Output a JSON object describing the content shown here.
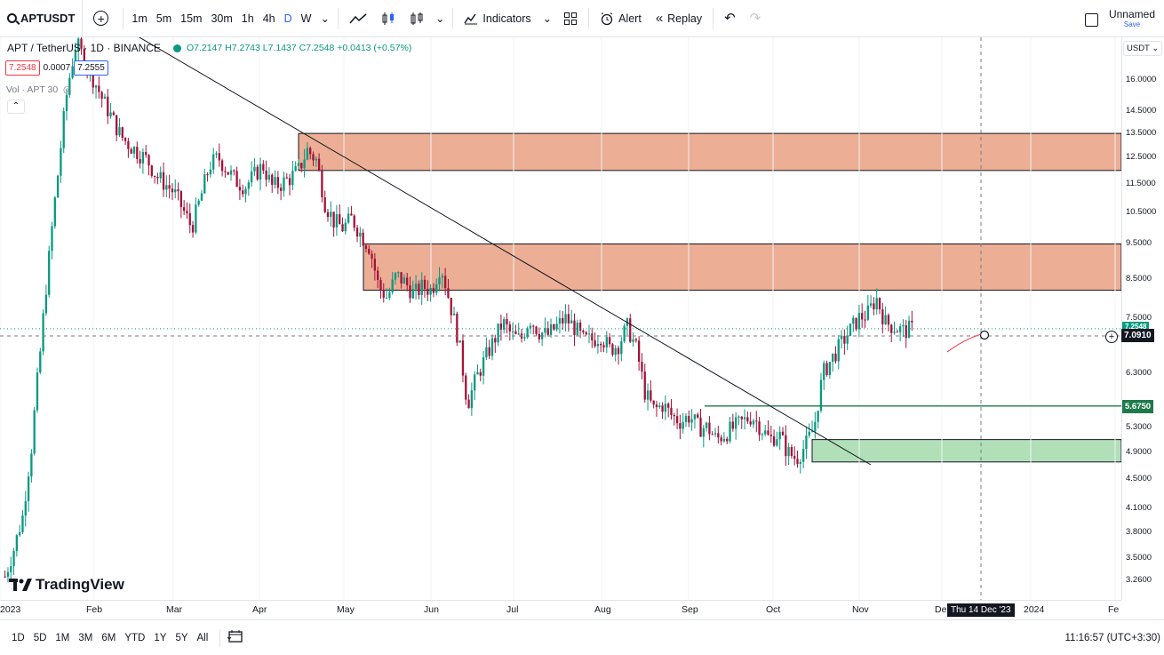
{
  "toolbar": {
    "symbol": "APTUSDT",
    "timeframes": [
      "1m",
      "5m",
      "15m",
      "30m",
      "1h",
      "4h",
      "D",
      "W"
    ],
    "active_timeframe": "D",
    "indicators_label": "Indicators",
    "alert_label": "Alert",
    "replay_label": "Replay",
    "layout_name": "Unnamed",
    "save_label": "Save"
  },
  "legend": {
    "title": "APT / TetherUS · 1D · BINANCE",
    "ohlc": "O7.2147 H7.2743 L7.1437 C7.2548 +0.0413 (+0.57%)",
    "bid": "7.2548",
    "spread": "0.0007",
    "ask": "7.2555",
    "volume": "Vol · APT 30"
  },
  "price_axis": {
    "currency": "USDT",
    "ticks": [
      "16.0000",
      "14.5000",
      "13.5000",
      "12.5000",
      "11.5000",
      "10.5000",
      "9.5000",
      "8.5000",
      "7.5000",
      "6.3000",
      "5.3000",
      "4.9000",
      "4.5000",
      "4.1000",
      "3.8000",
      "3.5000",
      "3.2600"
    ],
    "level_tag": "5.6750",
    "last_price": "7.2548",
    "crosshair_price": "7.0910"
  },
  "time_axis": {
    "ticks": [
      "2023",
      "Feb",
      "Mar",
      "Apr",
      "May",
      "Jun",
      "Jul",
      "Aug",
      "Sep",
      "Oct",
      "Nov",
      "De",
      "2024",
      "Fe"
    ],
    "crosshair_date": "Thu 14 Dec '23"
  },
  "bottom": {
    "ranges": [
      "1D",
      "5D",
      "1M",
      "3M",
      "6M",
      "YTD",
      "1Y",
      "5Y",
      "All"
    ],
    "clock": "11:16:57 (UTC+3:30)"
  },
  "branding": {
    "logo_text": "TradingView"
  },
  "colors": {
    "up": "#089981",
    "down": "#a3123a",
    "supply_zone": "#eaa58a",
    "demand_zone": "#a8dcb0",
    "accent": "#2962ff"
  },
  "chart_data": {
    "type": "candlestick",
    "symbol": "APT / TetherUS",
    "timeframe": "1D",
    "ylim": [
      3.1,
      18.0
    ],
    "scale": "log",
    "close_series": [
      3.3,
      3.6,
      4.0,
      5.0,
      6.8,
      9.2,
      12.0,
      15.5,
      18.0,
      17.0,
      16.0,
      15.0,
      14.2,
      13.4,
      13.0,
      12.7,
      12.4,
      11.8,
      11.5,
      11.2,
      10.6,
      10.0,
      11.0,
      12.2,
      12.5,
      12.0,
      11.6,
      11.4,
      11.8,
      12.2,
      11.4,
      11.5,
      11.7,
      12.0,
      12.8,
      12.4,
      10.8,
      10.2,
      10.0,
      10.3,
      9.8,
      9.4,
      8.3,
      8.0,
      8.6,
      8.4,
      8.1,
      8.3,
      8.2,
      8.9,
      7.9,
      7.0,
      5.7,
      6.2,
      6.6,
      7.0,
      7.4,
      7.1,
      7.0,
      7.5,
      7.2,
      7.1,
      7.3,
      7.5,
      7.3,
      7.0,
      7.0,
      7.1,
      6.8,
      6.9,
      7.3,
      6.8,
      5.9,
      5.6,
      5.7,
      5.5,
      5.4,
      5.5,
      5.3,
      5.3,
      5.1,
      5.2,
      5.3,
      5.4,
      5.5,
      5.3,
      5.1,
      5.2,
      4.9,
      4.8,
      5.0,
      5.3,
      6.3,
      6.6,
      6.9,
      7.2,
      7.5,
      7.6,
      8.0,
      7.4,
      7.3,
      7.2,
      7.25
    ],
    "zones": [
      {
        "type": "supply",
        "from": 12.0,
        "to": 13.5
      },
      {
        "type": "supply",
        "from": 8.2,
        "to": 9.5
      },
      {
        "type": "demand",
        "from": 4.75,
        "to": 5.1
      }
    ],
    "horizontal_level": 5.675,
    "trendline": {
      "from": {
        "date": "Jan 2023",
        "price": 18.5
      },
      "to": {
        "date": "Oct 2023",
        "price": 4.7
      }
    }
  }
}
